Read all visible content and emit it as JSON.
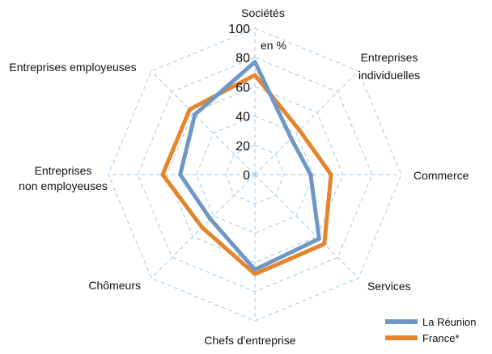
{
  "chart_data": {
    "type": "radar",
    "unit_label": "en %",
    "categories": [
      "Sociétés",
      "Entreprises individuelles",
      "Commerce",
      "Services",
      "Chefs d'entreprise",
      "Chômeurs",
      "Entreprises non employeuses",
      "Entreprises employeuses"
    ],
    "category_lines": [
      [
        "Sociétés"
      ],
      [
        "Entreprises",
        "individuelles"
      ],
      [
        "Commerce"
      ],
      [
        "Services"
      ],
      [
        "Chefs d'entreprise"
      ],
      [
        "Chômeurs"
      ],
      [
        "Entreprises",
        "non employeuses"
      ],
      [
        "Entreprises employeuses"
      ]
    ],
    "r_ticks": [
      "0",
      "20",
      "40",
      "60",
      "80",
      "100"
    ],
    "r_range": [
      0,
      100
    ],
    "series": [
      {
        "name": "La Réunion",
        "color": "#6f97c6",
        "values": [
          77,
          35,
          38,
          62,
          65,
          43,
          51,
          58
        ]
      },
      {
        "name": "France*",
        "color": "#e5852b",
        "values": [
          68,
          43,
          52,
          67,
          68,
          51,
          63,
          63
        ]
      }
    ],
    "legend_position": "bottom-right",
    "grid": true
  }
}
